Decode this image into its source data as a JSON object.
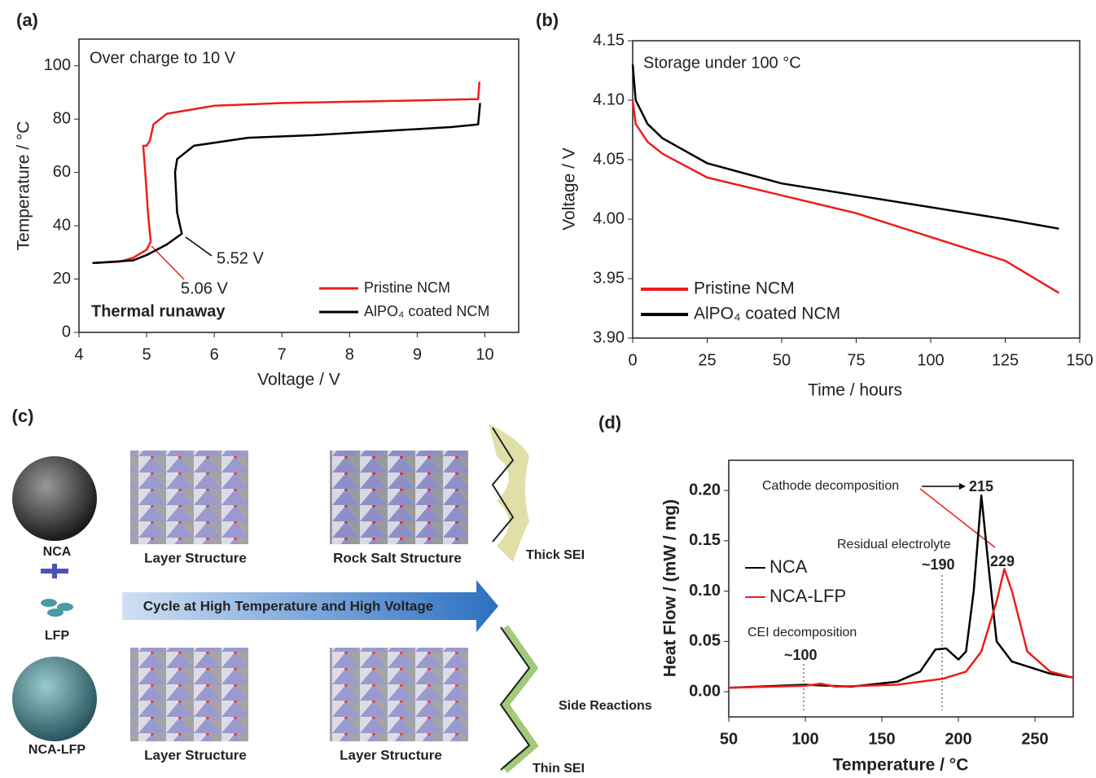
{
  "chart_data": [
    {
      "type": "line",
      "panel_label": "(a)",
      "xlabel": "Voltage / V",
      "ylabel": "Temperature / °C",
      "xlim": [
        4,
        10.5
      ],
      "xticks": [
        4,
        5,
        6,
        7,
        8,
        9,
        10
      ],
      "ylim": [
        0,
        110
      ],
      "yticks": [
        0,
        20,
        40,
        60,
        80,
        100
      ],
      "series": [
        {
          "name": "Pristine NCM",
          "color": "#ee1c1c",
          "x": [
            4.2,
            4.6,
            4.8,
            5.0,
            5.06,
            5.02,
            4.98,
            4.95,
            5.0,
            5.05,
            5.1,
            5.3,
            6,
            7,
            8,
            9,
            9.9,
            9.92
          ],
          "values": [
            26,
            26.5,
            28,
            31,
            34,
            45,
            60,
            70,
            70,
            72,
            78,
            82,
            85,
            86,
            86.5,
            87,
            87.5,
            94
          ]
        },
        {
          "name": "AlPO₄ coated NCM",
          "color": "#000000",
          "x": [
            4.2,
            4.8,
            5.0,
            5.3,
            5.52,
            5.45,
            5.42,
            5.45,
            5.7,
            6.5,
            7.5,
            8.5,
            9.5,
            9.9,
            9.93
          ],
          "values": [
            26,
            27,
            29,
            33,
            37,
            45,
            60,
            65,
            70,
            73,
            74,
            75.5,
            77,
            78,
            86
          ]
        }
      ],
      "annotations": [
        "Over charge to 10 V",
        "5.52 V",
        "5.06 V",
        "Thermal runaway"
      ]
    },
    {
      "type": "line",
      "panel_label": "(b)",
      "xlabel": "Time / hours",
      "ylabel": "Voltage / V",
      "xlim": [
        0,
        150
      ],
      "xticks": [
        0,
        25,
        50,
        75,
        100,
        125,
        150
      ],
      "ylim": [
        3.9,
        4.15
      ],
      "yticks": [
        {
          "value": 3.9,
          "label": "3.90"
        },
        3.95,
        {
          "value": 4.0,
          "label": "4.00"
        },
        4.05,
        {
          "value": 4.1,
          "label": "4.10"
        },
        4.15
      ],
      "series": [
        {
          "name": "Pristine NCM",
          "color": "#ee1c1c",
          "x": [
            0,
            1,
            5,
            10,
            25,
            50,
            75,
            100,
            125,
            143
          ],
          "values": [
            4.1,
            4.08,
            4.065,
            4.055,
            4.035,
            4.02,
            4.005,
            3.985,
            3.965,
            3.938
          ]
        },
        {
          "name": "AlPO₄ coated NCM",
          "color": "#000000",
          "x": [
            0,
            1,
            5,
            10,
            25,
            50,
            75,
            100,
            125,
            143
          ],
          "values": [
            4.13,
            4.1,
            4.08,
            4.068,
            4.047,
            4.03,
            4.02,
            4.01,
            4.0,
            3.992
          ]
        }
      ],
      "annotations": [
        "Storage under 100 °C"
      ]
    },
    {
      "type": "line",
      "panel_label": "(d)",
      "xlabel": "Temperature / °C",
      "ylabel": "Heat Flow / (mW / mg)",
      "xlim": [
        50,
        275
      ],
      "xticks": [
        50,
        100,
        150,
        200,
        250
      ],
      "ylim": [
        -0.025,
        0.23
      ],
      "yticks": [
        {
          "value": 0,
          "label": "0.00"
        },
        0.05,
        {
          "value": 0.1,
          "label": "0.10"
        },
        0.15,
        {
          "value": 0.2,
          "label": "0.20"
        }
      ],
      "series": [
        {
          "name": "NCA",
          "color": "#000000",
          "x": [
            50,
            100,
            130,
            160,
            175,
            185,
            192,
            200,
            205,
            210,
            215,
            220,
            225,
            235,
            260,
            275
          ],
          "values": [
            0.004,
            0.007,
            0.005,
            0.01,
            0.02,
            0.042,
            0.043,
            0.032,
            0.04,
            0.1,
            0.195,
            0.12,
            0.05,
            0.03,
            0.018,
            0.014
          ]
        },
        {
          "name": "NCA-LFP",
          "color": "#ee1c1c",
          "x": [
            50,
            100,
            110,
            120,
            160,
            190,
            205,
            215,
            225,
            230,
            235,
            245,
            260,
            275
          ],
          "values": [
            0.004,
            0.006,
            0.008,
            0.005,
            0.007,
            0.013,
            0.02,
            0.04,
            0.09,
            0.122,
            0.1,
            0.04,
            0.02,
            0.014
          ]
        }
      ],
      "annotations": [
        "Cathode decomposition",
        "215",
        "Residual electrolyte",
        "~190",
        "229",
        "CEI decomposition",
        "~100"
      ]
    }
  ],
  "diagram": {
    "panel_label": "(c)",
    "arrow": "Cycle at High Temperature and High Voltage",
    "materials": [
      "NCA",
      "LFP",
      "NCA-LFP"
    ],
    "top_row": [
      "Layer Structure",
      "Rock Salt Structure",
      "Thick SEI"
    ],
    "bottom_row": [
      "Layer Structure",
      "Layer Structure",
      "Side Reactions",
      "Thin SEI"
    ]
  }
}
